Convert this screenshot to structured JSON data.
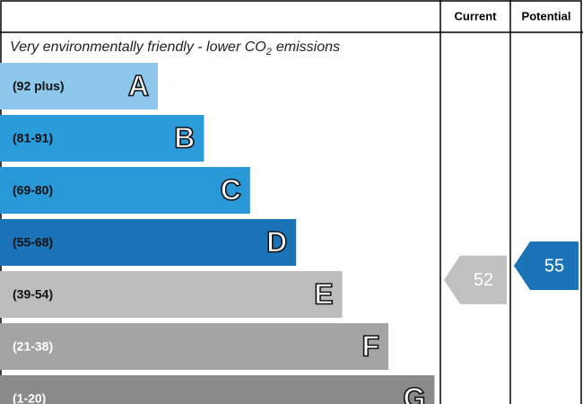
{
  "header": {
    "current": "Current",
    "potential": "Potential"
  },
  "caption": {
    "text": "Very environmentally friendly - lower CO",
    "subscript": "2",
    "suffix": "emissions"
  },
  "bands": [
    {
      "range": "(92 plus)",
      "letter": "A",
      "color": "#8dc8ec",
      "text_color": "#111111"
    },
    {
      "range": "(81-91)",
      "letter": "B",
      "color": "#2b9bd9",
      "text_color": "#111111"
    },
    {
      "range": "(69-80)",
      "letter": "C",
      "color": "#2898d6",
      "text_color": "#111111"
    },
    {
      "range": "(55-68)",
      "letter": "D",
      "color": "#1b73b8",
      "text_color": "#111111"
    },
    {
      "range": "(39-54)",
      "letter": "E",
      "color": "#bdbdbd",
      "text_color": "#111111"
    },
    {
      "range": "(21-38)",
      "letter": "F",
      "color": "#a4a4a4",
      "text_color": "#ffffff"
    },
    {
      "range": "(1-20)",
      "letter": "G",
      "color": "#8a8a8a",
      "text_color": "#ffffff"
    }
  ],
  "current": {
    "value": 52,
    "color": "#c0c0c0"
  },
  "potential": {
    "value": 55,
    "color": "#1b73b8"
  }
}
